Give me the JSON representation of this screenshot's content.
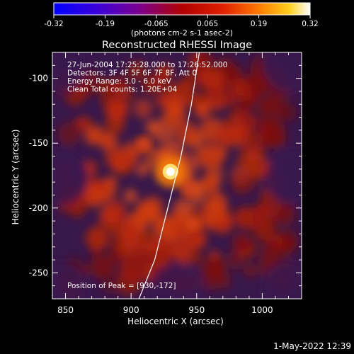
{
  "colorbar": {
    "ticks": [
      "-0.32",
      "-0.19",
      "-0.065",
      "0.065",
      "0.19",
      "0.32"
    ],
    "unit_label": "(photons cm-2 s-1 asec-2)",
    "range": [
      -0.32,
      0.32
    ]
  },
  "chart_data": {
    "type": "heatmap",
    "title": "Reconstructed RHESSI Image",
    "xlabel": "Heliocentric X (arcsec)",
    "ylabel": "Heliocentric Y (arcsec)",
    "xlim": [
      840,
      1030
    ],
    "ylim": [
      -270,
      -80
    ],
    "x_ticks": [
      850,
      900,
      950,
      1000
    ],
    "y_ticks": [
      -100,
      -150,
      -200,
      -250
    ],
    "peak": {
      "x": 930,
      "y": -172,
      "value": 0.32
    },
    "secondary_peaks": [
      {
        "x": 944,
        "y": -187,
        "value": 0.15
      },
      {
        "x": 948,
        "y": -212,
        "value": 0.12
      },
      {
        "x": 910,
        "y": -150,
        "value": 0.1
      }
    ],
    "limb_curve": [
      [
        906,
        -270
      ],
      [
        918,
        -240
      ],
      [
        928,
        -200
      ],
      [
        938,
        -160
      ],
      [
        946,
        -120
      ],
      [
        952,
        -80
      ]
    ],
    "info_lines": [
      "27-Jun-2004 17:25:28.000 to 17:26:52.000",
      "Detectors: 3F 4F 5F 6F 7F 8F, Att 0",
      "Energy Range: 3.0 - 6.0 keV",
      "Clean    Total counts: 1.20E+04"
    ],
    "peak_label": "Position of Peak = [930,-172]",
    "grid": false
  },
  "footer": {
    "date": "1-May-2022 12:39"
  }
}
